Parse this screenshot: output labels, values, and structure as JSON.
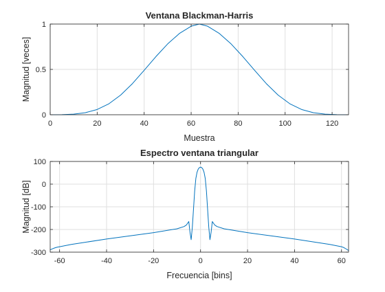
{
  "chart_data": [
    {
      "type": "line",
      "title": "Ventana Blackman-Harris",
      "xlabel": "Muestra",
      "ylabel": "Magnitud [veces]",
      "xlim": [
        0,
        127
      ],
      "ylim": [
        0,
        1
      ],
      "xticks": [
        0,
        20,
        40,
        60,
        80,
        100,
        120
      ],
      "yticks": [
        0,
        0.5,
        1
      ],
      "grid": true,
      "legend": "none",
      "color": "#0072BD",
      "series": [
        {
          "x": [
            0,
            5,
            10,
            15,
            20,
            25,
            30,
            35,
            40,
            45,
            50,
            55,
            60,
            63.5,
            67,
            72,
            77,
            82,
            87,
            92,
            97,
            102,
            107,
            112,
            117,
            122,
            127
          ],
          "y": [
            0.0001,
            0.001,
            0.007,
            0.023,
            0.058,
            0.121,
            0.217,
            0.343,
            0.49,
            0.641,
            0.781,
            0.896,
            0.976,
            1.0,
            0.976,
            0.896,
            0.781,
            0.641,
            0.49,
            0.343,
            0.217,
            0.121,
            0.058,
            0.023,
            0.007,
            0.001,
            0.0001
          ]
        }
      ]
    },
    {
      "type": "line",
      "title": "Espectro ventana triangular",
      "xlabel": "Frecuencia [bins]",
      "ylabel": "Magnitud [dB]",
      "xlim": [
        -64,
        63
      ],
      "ylim": [
        -300,
        100
      ],
      "xticks": [
        -60,
        -40,
        -20,
        0,
        20,
        40,
        60
      ],
      "yticks": [
        -300,
        -200,
        -100,
        0,
        100
      ],
      "grid": true,
      "legend": "none",
      "color": "#0072BD",
      "series": [
        {
          "x": [
            -64,
            -63,
            -62,
            -61,
            -60,
            -55,
            -50,
            -40,
            -30,
            -20,
            -10,
            -7,
            -6,
            -5,
            -4.5,
            -4,
            -3.5,
            -3,
            -2.5,
            -2,
            -1.5,
            -1,
            -0.5,
            0,
            0.5,
            1,
            1.5,
            2,
            2.5,
            3,
            3.5,
            4,
            4.5,
            5,
            6,
            7,
            10,
            20,
            30,
            40,
            50,
            55,
            60,
            61,
            62,
            63
          ],
          "y": [
            -290,
            -285,
            -281,
            -278,
            -276,
            -266,
            -258,
            -242,
            -228,
            -214,
            -197,
            -187,
            -180,
            -165,
            -212,
            -245,
            -190,
            -110,
            -30,
            25,
            52,
            66,
            73,
            75,
            73,
            66,
            52,
            25,
            -30,
            -110,
            -190,
            -245,
            -212,
            -165,
            -180,
            -187,
            -197,
            -214,
            -228,
            -242,
            -258,
            -266,
            -276,
            -280,
            -286,
            -293
          ]
        }
      ]
    }
  ]
}
